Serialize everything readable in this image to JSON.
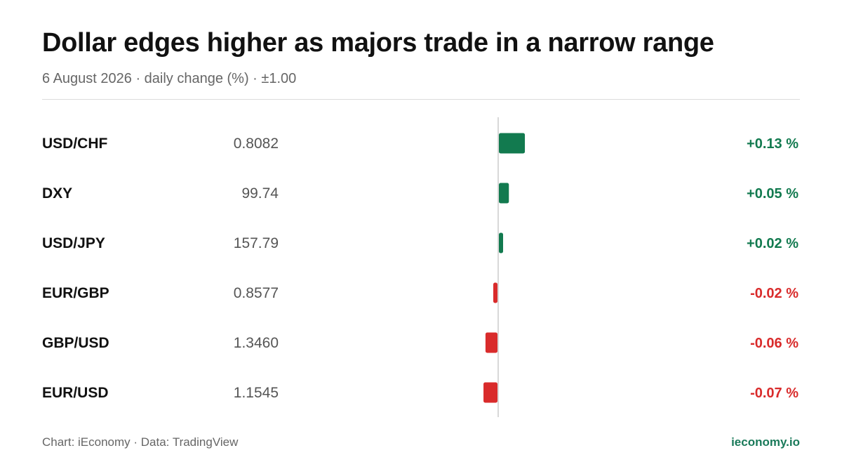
{
  "title": "Dollar edges higher as majors trade in a narrow range",
  "subtitle": "6 August 2026 · daily change (%) · ±1.00",
  "footer": {
    "source": "Chart: iEconomy · Data: TradingView",
    "brand": "ieconomy.io"
  },
  "colors": {
    "positive": "#127a4f",
    "negative": "#d92b2b",
    "brand": "#1a7a5a",
    "axis": "#cccccc"
  },
  "chart_data": {
    "type": "bar",
    "orientation": "horizontal",
    "unit": "%",
    "xlim": [
      -1,
      1
    ],
    "rows": [
      {
        "pair": "USD/CHF",
        "price": "0.8082",
        "change": 0.13,
        "change_label": "+0.13 %"
      },
      {
        "pair": "DXY",
        "price": "99.74",
        "change": 0.05,
        "change_label": "+0.05 %"
      },
      {
        "pair": "USD/JPY",
        "price": "157.79",
        "change": 0.02,
        "change_label": "+0.02 %"
      },
      {
        "pair": "EUR/GBP",
        "price": "0.8577",
        "change": -0.02,
        "change_label": "-0.02 %"
      },
      {
        "pair": "GBP/USD",
        "price": "1.3460",
        "change": -0.06,
        "change_label": "-0.06 %"
      },
      {
        "pair": "EUR/USD",
        "price": "1.1545",
        "change": -0.07,
        "change_label": "-0.07 %"
      }
    ]
  }
}
